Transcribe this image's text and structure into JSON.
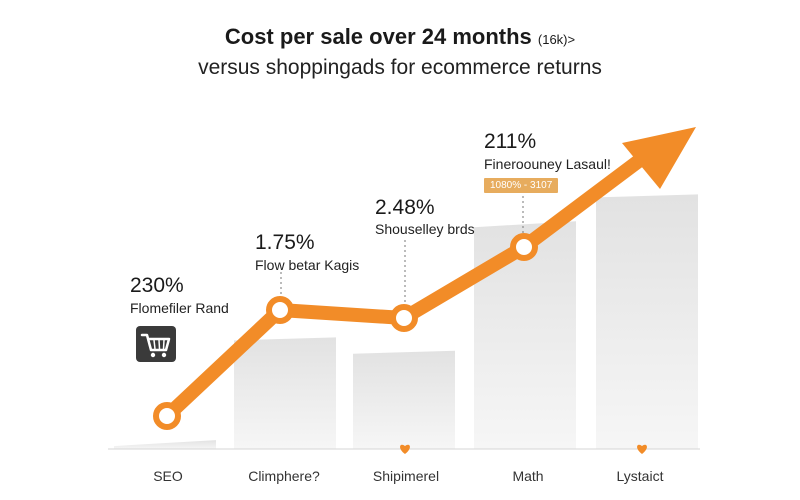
{
  "title": "Cost per sale over 24 months",
  "title_unit": "(16k)>",
  "subtitle": "versus shoppingads for ecommerce returns",
  "colors": {
    "line": "#f28c28",
    "bar": "#e8e8e8",
    "tag": "#e7ac5e"
  },
  "icons": [
    "shopping-cart-icon",
    "heart-icon"
  ],
  "chart_data": {
    "type": "bar",
    "categories": [
      "SEO",
      "Climphere?",
      "Shipimerel",
      "Math",
      "Lystaict"
    ],
    "values": [
      2,
      25,
      22,
      51,
      57
    ],
    "trend_line": [
      {
        "value": "230%",
        "note": "Flomefiler Rand"
      },
      {
        "value": "1.75%",
        "note": "Flow betar Kagis"
      },
      {
        "value": "2.48%",
        "note": "Shouselley brds"
      },
      {
        "value": "211%",
        "note": "Fineroouney Lasaul!",
        "tag": "1080% - 3107"
      }
    ],
    "title": "Cost per sale over 24 months",
    "subtitle": "versus shoppingads for ecommerce returns",
    "xlabel": "",
    "ylabel": "",
    "grid": false
  }
}
